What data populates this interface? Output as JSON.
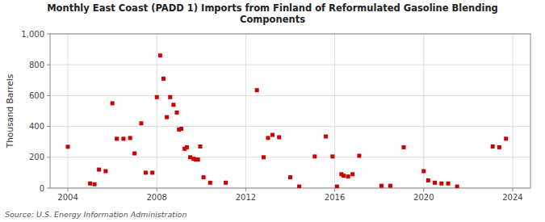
{
  "chart_data": {
    "type": "scatter",
    "title": "Monthly East Coast (PADD 1) Imports from Finland of Reformulated Gasoline Blending\nComponents",
    "ylabel": "Thousand Barrels",
    "source": "Source: U.S. Energy Information Administration",
    "xlim": [
      2003.2,
      2024.8
    ],
    "ylim": [
      0,
      1000
    ],
    "xticks": [
      2004,
      2008,
      2012,
      2016,
      2020,
      2024
    ],
    "yticks": [
      0,
      200,
      400,
      600,
      800,
      {
        "value": 1000,
        "label": "1,000"
      }
    ],
    "grid": true,
    "color": "#cc0000",
    "marker": "square",
    "x": [
      2004.0,
      2005.0,
      2005.2,
      2005.4,
      2005.7,
      2006.0,
      2006.2,
      2006.5,
      2006.8,
      2007.0,
      2007.3,
      2007.5,
      2007.8,
      2008.0,
      2008.15,
      2008.3,
      2008.45,
      2008.6,
      2008.75,
      2008.9,
      2009.0,
      2009.1,
      2009.25,
      2009.35,
      2009.5,
      2009.65,
      2009.75,
      2009.85,
      2009.95,
      2010.1,
      2010.4,
      2011.1,
      2012.5,
      2012.8,
      2013.0,
      2013.2,
      2013.5,
      2014.0,
      2014.4,
      2015.1,
      2015.6,
      2015.9,
      2016.1,
      2016.3,
      2016.4,
      2016.6,
      2016.8,
      2017.1,
      2018.1,
      2018.5,
      2019.1,
      2020.0,
      2020.2,
      2020.5,
      2020.8,
      2021.1,
      2021.5,
      2023.1,
      2023.4,
      2023.7
    ],
    "values": [
      268,
      30,
      25,
      120,
      110,
      550,
      320,
      320,
      325,
      225,
      420,
      100,
      100,
      590,
      860,
      710,
      460,
      590,
      540,
      490,
      380,
      385,
      255,
      265,
      200,
      190,
      185,
      185,
      270,
      70,
      35,
      35,
      635,
      200,
      325,
      345,
      330,
      70,
      10,
      205,
      335,
      205,
      10,
      90,
      80,
      75,
      90,
      210,
      15,
      15,
      265,
      110,
      50,
      35,
      30,
      30,
      10,
      270,
      265,
      320
    ]
  }
}
